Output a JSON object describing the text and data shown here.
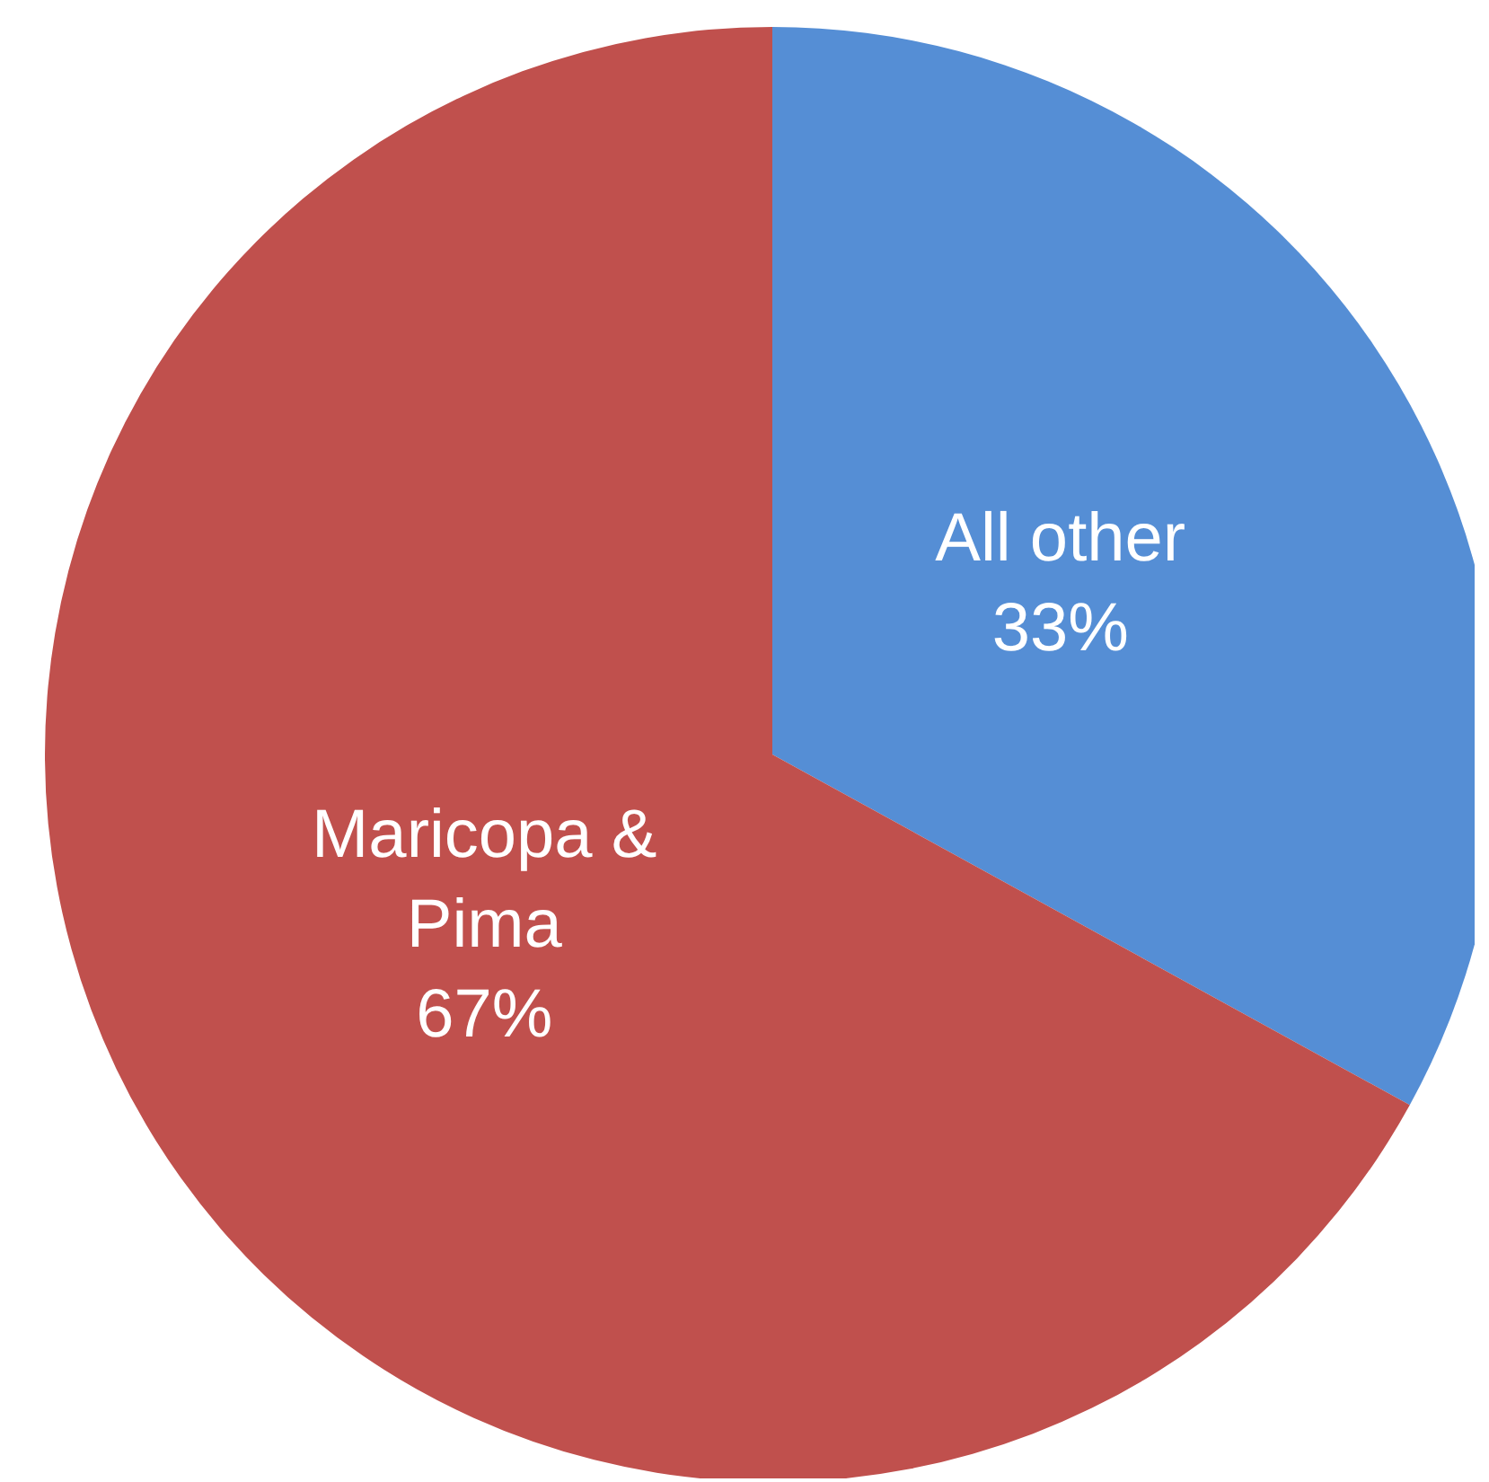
{
  "chart_data": {
    "type": "pie",
    "categories": [
      "All other",
      "Maricopa & Pima"
    ],
    "values": [
      33,
      67
    ],
    "colors": [
      "#558ed5",
      "#c0504d"
    ],
    "value_labels": [
      "33%",
      "67%"
    ],
    "legend": false
  }
}
